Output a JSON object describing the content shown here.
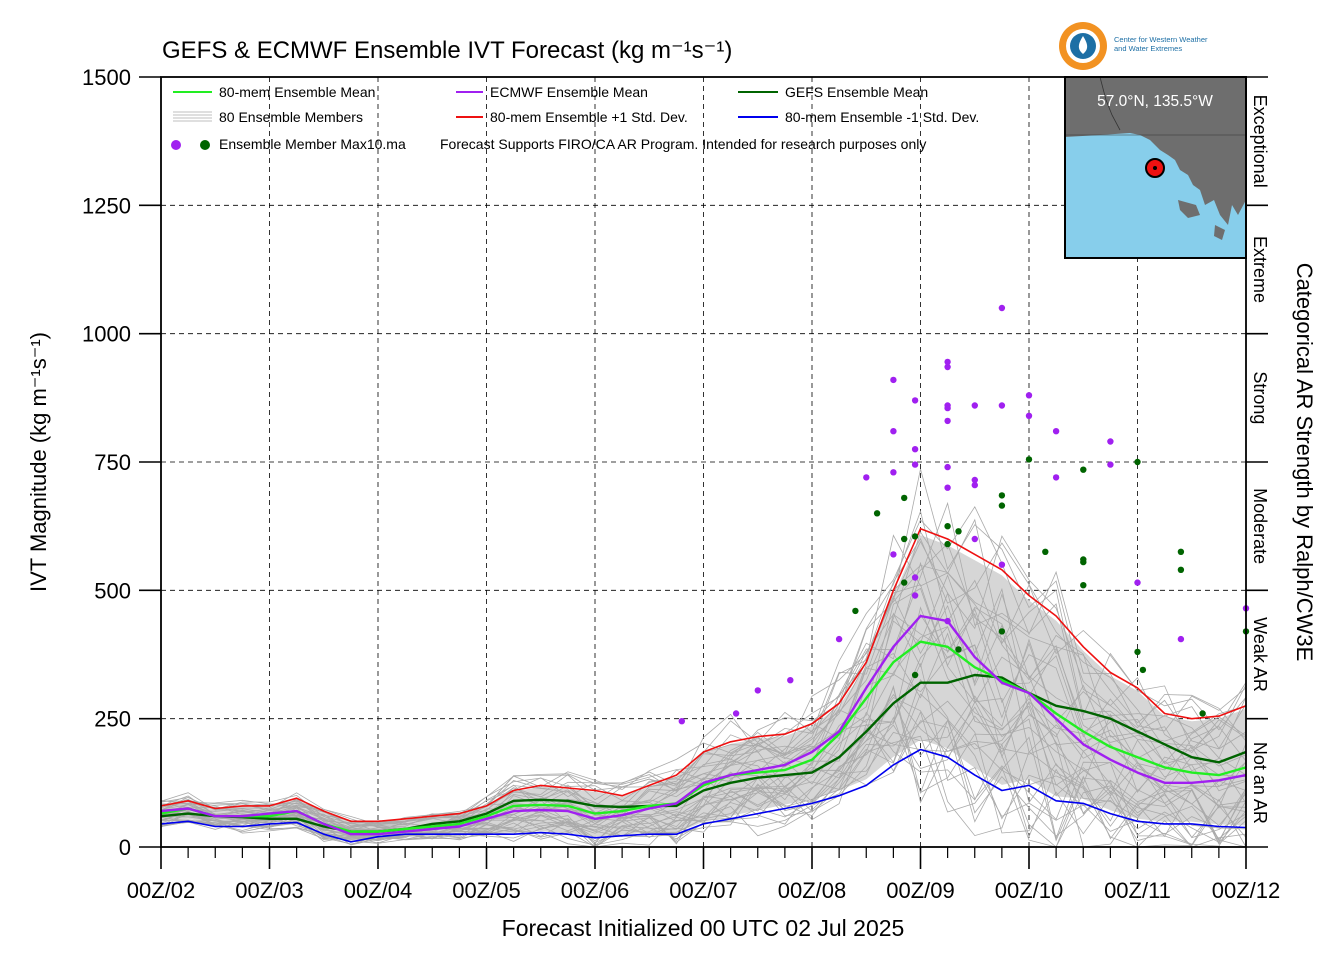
{
  "chart_data": {
    "type": "line",
    "title": "GEFS & ECMWF Ensemble IVT Forecast (kg m⁻¹s⁻¹)",
    "xlabel": "Forecast Initialized 00 UTC 02 Jul 2025",
    "ylabel": "IVT Magnitude (kg m⁻¹s⁻¹)",
    "right_axis_label": "Categorical AR Strength by Ralph/CW3E",
    "x_unit": "days since 00Z/02",
    "xlim": [
      0,
      10
    ],
    "ylim": [
      0,
      1500
    ],
    "y_ticks": [
      0,
      250,
      500,
      750,
      1000,
      1250,
      1500
    ],
    "x_tick_labels": [
      "00Z/02",
      "00Z/03",
      "00Z/04",
      "00Z/05",
      "00Z/06",
      "00Z/07",
      "00Z/08",
      "00Z/09",
      "00Z/10",
      "00Z/11",
      "00Z/12"
    ],
    "grid": true,
    "legend_position": "top-left",
    "legend": [
      {
        "label": "80-mem Ensemble Mean",
        "color": "#22ee22"
      },
      {
        "label": "ECMWF Ensemble Mean",
        "color": "#a020f0"
      },
      {
        "label": "GEFS Ensemble Mean",
        "color": "#006400"
      },
      {
        "label": "80 Ensemble Members",
        "color": "#aaaaaa"
      },
      {
        "label": "80-mem Ensemble +1 Std. Dev.",
        "color": "#ee1111"
      },
      {
        "label": "80-mem Ensemble -1 Std. Dev.",
        "color": "#0000ee"
      },
      {
        "label": "Ensemble Member Max10.ma",
        "color": "#a020f0"
      }
    ],
    "note": "Forecast Supports FIRO/CA AR Program. Intended for research purposes only",
    "categories": [
      {
        "label": "Not an AR",
        "range": [
          0,
          250
        ]
      },
      {
        "label": "Weak AR",
        "range": [
          250,
          500
        ]
      },
      {
        "label": "Moderate",
        "range": [
          500,
          750
        ]
      },
      {
        "label": "Strong",
        "range": [
          750,
          1000
        ]
      },
      {
        "label": "Extreme",
        "range": [
          1000,
          1250
        ]
      },
      {
        "label": "Exceptional",
        "range": [
          1250,
          1500
        ]
      }
    ],
    "series": [
      {
        "name": "80-mem Ensemble +1 Std. Dev.",
        "color": "#ee1111",
        "x": [
          0,
          0.25,
          0.5,
          0.75,
          1,
          1.25,
          1.5,
          1.75,
          2,
          2.25,
          2.5,
          2.75,
          3,
          3.25,
          3.5,
          3.75,
          4,
          4.25,
          4.5,
          4.75,
          5,
          5.25,
          5.5,
          5.75,
          6,
          6.25,
          6.5,
          6.75,
          7,
          7.25,
          7.5,
          7.75,
          8,
          8.25,
          8.5,
          8.75,
          9,
          9.25,
          9.5,
          9.75,
          10
        ],
        "values": [
          80,
          90,
          75,
          80,
          80,
          95,
          70,
          50,
          50,
          55,
          60,
          65,
          80,
          110,
          120,
          115,
          110,
          100,
          120,
          140,
          185,
          205,
          215,
          220,
          240,
          280,
          360,
          500,
          620,
          600,
          570,
          540,
          490,
          450,
          390,
          340,
          310,
          260,
          250,
          255,
          275
        ]
      },
      {
        "name": "GEFS Ensemble Mean",
        "color": "#006400",
        "x": [
          0,
          0.25,
          0.5,
          0.75,
          1,
          1.25,
          1.5,
          1.75,
          2,
          2.25,
          2.5,
          2.75,
          3,
          3.25,
          3.5,
          3.75,
          4,
          4.25,
          4.5,
          4.75,
          5,
          5.25,
          5.5,
          5.75,
          6,
          6.25,
          6.5,
          6.75,
          7,
          7.25,
          7.5,
          7.75,
          8,
          8.25,
          8.5,
          8.75,
          9,
          9.25,
          9.5,
          9.75,
          10
        ],
        "values": [
          60,
          65,
          60,
          58,
          55,
          55,
          40,
          30,
          30,
          35,
          45,
          50,
          65,
          90,
          92,
          90,
          80,
          78,
          80,
          80,
          110,
          125,
          135,
          140,
          145,
          175,
          225,
          280,
          320,
          320,
          335,
          330,
          300,
          275,
          265,
          250,
          225,
          200,
          175,
          165,
          185
        ]
      },
      {
        "name": "80-mem Ensemble Mean",
        "color": "#22ee22",
        "x": [
          0,
          0.25,
          0.5,
          0.75,
          1,
          1.25,
          1.5,
          1.75,
          2,
          2.25,
          2.5,
          2.75,
          3,
          3.25,
          3.5,
          3.75,
          4,
          4.25,
          4.5,
          4.75,
          5,
          5.25,
          5.5,
          5.75,
          6,
          6.25,
          6.5,
          6.75,
          7,
          7.25,
          7.5,
          7.75,
          8,
          8.25,
          8.5,
          8.75,
          9,
          9.25,
          9.5,
          9.75,
          10
        ],
        "values": [
          65,
          75,
          60,
          60,
          60,
          70,
          45,
          30,
          30,
          35,
          40,
          45,
          60,
          80,
          82,
          80,
          65,
          70,
          80,
          85,
          120,
          140,
          145,
          150,
          170,
          220,
          290,
          360,
          400,
          390,
          350,
          325,
          300,
          260,
          225,
          195,
          175,
          155,
          145,
          140,
          155
        ]
      },
      {
        "name": "ECMWF Ensemble Mean",
        "color": "#a020f0",
        "x": [
          0,
          0.25,
          0.5,
          0.75,
          1,
          1.25,
          1.5,
          1.75,
          2,
          2.25,
          2.5,
          2.75,
          3,
          3.25,
          3.5,
          3.75,
          4,
          4.25,
          4.5,
          4.75,
          5,
          5.25,
          5.5,
          5.75,
          6,
          6.25,
          6.5,
          6.75,
          7,
          7.25,
          7.5,
          7.75,
          8,
          8.25,
          8.5,
          8.75,
          9,
          9.25,
          9.5,
          9.75,
          10
        ],
        "values": [
          70,
          75,
          60,
          60,
          65,
          70,
          45,
          25,
          25,
          30,
          35,
          40,
          55,
          70,
          72,
          70,
          55,
          62,
          75,
          85,
          125,
          140,
          150,
          160,
          185,
          225,
          310,
          390,
          450,
          440,
          370,
          320,
          300,
          250,
          200,
          170,
          145,
          125,
          125,
          130,
          140
        ]
      },
      {
        "name": "80-mem Ensemble -1 Std. Dev.",
        "color": "#0000ee",
        "x": [
          0,
          0.25,
          0.5,
          0.75,
          1,
          1.25,
          1.5,
          1.75,
          2,
          2.25,
          2.5,
          2.75,
          3,
          3.25,
          3.5,
          3.75,
          4,
          4.25,
          4.5,
          4.75,
          5,
          5.25,
          5.5,
          5.75,
          6,
          6.25,
          6.5,
          6.75,
          7,
          7.25,
          7.5,
          7.75,
          8,
          8.25,
          8.5,
          8.75,
          9,
          9.25,
          9.5,
          9.75,
          10
        ],
        "values": [
          45,
          50,
          40,
          40,
          45,
          48,
          25,
          10,
          20,
          25,
          25,
          25,
          25,
          25,
          28,
          25,
          18,
          22,
          25,
          25,
          45,
          55,
          65,
          75,
          85,
          100,
          120,
          160,
          190,
          175,
          140,
          110,
          120,
          90,
          85,
          65,
          50,
          45,
          45,
          40,
          38
        ]
      }
    ],
    "points": [
      {
        "name": "ECMWF member max",
        "color": "#a020f0",
        "x": [
          4.8,
          5.3,
          5.5,
          5.8,
          6.25,
          6.5,
          6.75,
          6.75,
          6.75,
          6.75,
          6.95,
          6.95,
          6.95,
          6.95,
          6.95,
          7.25,
          7.25,
          7.25,
          7.25,
          7.25,
          7.25,
          7.25,
          7.25,
          7.5,
          7.5,
          7.5,
          7.5,
          7.75,
          7.75,
          7.75,
          8,
          8,
          8.25,
          8.25,
          8.75,
          8.75,
          9,
          9.4,
          10
        ],
        "values": [
          245,
          260,
          305,
          325,
          405,
          720,
          570,
          810,
          730,
          910,
          775,
          745,
          525,
          490,
          870,
          945,
          935,
          860,
          855,
          830,
          740,
          700,
          440,
          860,
          715,
          705,
          600,
          1050,
          860,
          550,
          880,
          840,
          720,
          810,
          790,
          745,
          515,
          405,
          465
        ]
      },
      {
        "name": "GEFS member max",
        "color": "#006400",
        "x": [
          6.4,
          6.6,
          6.85,
          6.85,
          6.85,
          6.95,
          6.95,
          7.25,
          7.25,
          7.35,
          7.35,
          7.75,
          7.75,
          7.75,
          8,
          8.15,
          8.5,
          8.5,
          8.5,
          8.5,
          9,
          9,
          9.05,
          9.4,
          9.4,
          9.6,
          10
        ],
        "values": [
          460,
          650,
          680,
          600,
          515,
          335,
          605,
          625,
          590,
          615,
          385,
          685,
          665,
          420,
          755,
          575,
          735,
          560,
          510,
          555,
          750,
          380,
          345,
          575,
          540,
          260,
          420
        ]
      }
    ]
  },
  "header": {
    "logo_label_line1": "Center for Western Weather",
    "logo_label_line2": "and Water Extremes"
  },
  "inset_map": {
    "location_label": "57.0°N, 135.5°W",
    "land_color": "#6e6e6e",
    "water_color": "#87ceeb",
    "marker_color": "#ee1111"
  }
}
